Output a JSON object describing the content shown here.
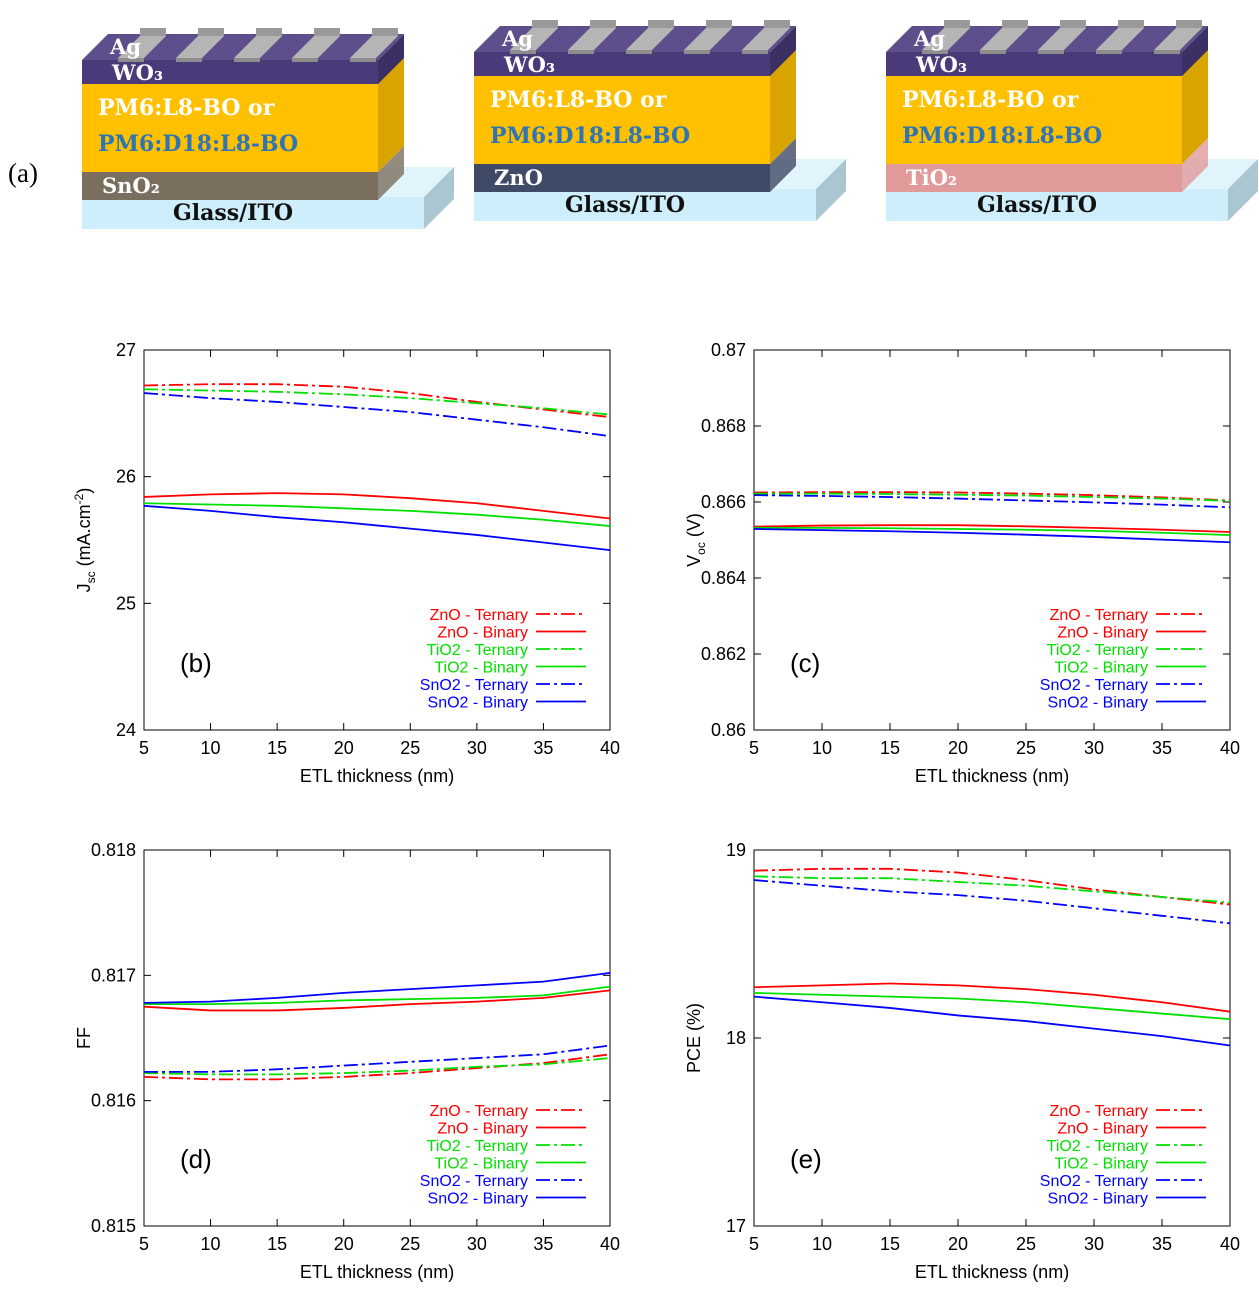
{
  "panel_a": {
    "label": "(a)",
    "stacks": [
      {
        "contact": "Ag",
        "htl": "WO₃",
        "active_line1": "PM6:L8-BO or",
        "active_line2": "PM6:D18:L8-BO",
        "etl": "SnO₂",
        "substrate": "Glass/ITO",
        "etl_color": "#7a6e5f"
      },
      {
        "contact": "Ag",
        "htl": "WO₃",
        "active_line1": "PM6:L8-BO or",
        "active_line2": "PM6:D18:L8-BO",
        "etl": "ZnO",
        "substrate": "Glass/ITO",
        "etl_color": "#3f4a66"
      },
      {
        "contact": "Ag",
        "htl": "WO₃",
        "active_line1": "PM6:L8-BO or",
        "active_line2": "PM6:D18:L8-BO",
        "etl": "TiO₂",
        "substrate": "Glass/ITO",
        "etl_color": "#e09a9a"
      }
    ]
  },
  "legend_entries": [
    {
      "name": "ZnO - Ternary",
      "color": "#ff0000",
      "dash": true
    },
    {
      "name": "ZnO - Binary",
      "color": "#ff0000",
      "dash": false
    },
    {
      "name": "TiO2 - Ternary",
      "color": "#00e000",
      "dash": true
    },
    {
      "name": "TiO2 - Binary",
      "color": "#00e000",
      "dash": false
    },
    {
      "name": "SnO2 - Ternary",
      "color": "#0000ff",
      "dash": true
    },
    {
      "name": "SnO2 - Binary",
      "color": "#0000ff",
      "dash": false
    }
  ],
  "chart_data": [
    {
      "id": "b",
      "type": "line",
      "panel_label": "(b)",
      "xlabel": "ETL thickness (nm)",
      "ylabel_main": "J",
      "ylabel_sub": "sc",
      "ylabel_rest": " (mA.cm",
      "ylabel_sup": "-2",
      "ylabel_end": ")",
      "xlim": [
        5,
        40
      ],
      "ylim": [
        24,
        27
      ],
      "xticks": [
        "5",
        "10",
        "15",
        "20",
        "25",
        "30",
        "35",
        "40"
      ],
      "yticks": [
        "24",
        "25",
        "26",
        "27"
      ],
      "x": [
        5,
        10,
        15,
        20,
        25,
        30,
        35,
        40
      ],
      "series": [
        {
          "name": "ZnO - Ternary",
          "values": [
            26.72,
            26.73,
            26.73,
            26.71,
            26.66,
            26.59,
            26.53,
            26.47
          ]
        },
        {
          "name": "ZnO - Binary",
          "values": [
            25.84,
            25.86,
            25.87,
            25.86,
            25.83,
            25.79,
            25.73,
            25.67
          ]
        },
        {
          "name": "TiO2 - Ternary",
          "values": [
            26.69,
            26.68,
            26.67,
            26.65,
            26.62,
            26.58,
            26.54,
            26.49
          ]
        },
        {
          "name": "TiO2 - Binary",
          "values": [
            25.79,
            25.78,
            25.77,
            25.75,
            25.73,
            25.7,
            25.66,
            25.61
          ]
        },
        {
          "name": "SnO2 - Ternary",
          "values": [
            26.66,
            26.62,
            26.59,
            26.55,
            26.51,
            26.45,
            26.39,
            26.32
          ]
        },
        {
          "name": "SnO2 - Binary",
          "values": [
            25.77,
            25.73,
            25.68,
            25.64,
            25.59,
            25.54,
            25.48,
            25.42
          ]
        }
      ]
    },
    {
      "id": "c",
      "type": "line",
      "panel_label": "(c)",
      "xlabel": "ETL thickness (nm)",
      "ylabel_main": "V",
      "ylabel_sub": "oc",
      "ylabel_rest": " (V)",
      "ylabel_sup": "",
      "ylabel_end": "",
      "xlim": [
        5,
        40
      ],
      "ylim": [
        0.86,
        0.87
      ],
      "xticks": [
        "5",
        "10",
        "15",
        "20",
        "25",
        "30",
        "35",
        "40"
      ],
      "yticks": [
        "0.86",
        "0.862",
        "0.864",
        "0.866",
        "0.868",
        "0.87"
      ],
      "x": [
        5,
        10,
        15,
        20,
        25,
        30,
        35,
        40
      ],
      "series": [
        {
          "name": "ZnO - Ternary",
          "values": [
            0.86625,
            0.86626,
            0.86626,
            0.86625,
            0.86622,
            0.86618,
            0.86612,
            0.86604
          ]
        },
        {
          "name": "ZnO - Binary",
          "values": [
            0.86535,
            0.86538,
            0.86539,
            0.86539,
            0.86536,
            0.86532,
            0.86527,
            0.86521
          ]
        },
        {
          "name": "TiO2 - Ternary",
          "values": [
            0.86622,
            0.86622,
            0.86621,
            0.86619,
            0.86617,
            0.86613,
            0.86609,
            0.86603
          ]
        },
        {
          "name": "TiO2 - Binary",
          "values": [
            0.86532,
            0.86532,
            0.86531,
            0.86529,
            0.86527,
            0.86524,
            0.86519,
            0.86513
          ]
        },
        {
          "name": "SnO2 - Ternary",
          "values": [
            0.86618,
            0.86616,
            0.86613,
            0.86609,
            0.86604,
            0.86599,
            0.86593,
            0.86586
          ]
        },
        {
          "name": "SnO2 - Binary",
          "values": [
            0.86529,
            0.86526,
            0.86523,
            0.86519,
            0.86514,
            0.86508,
            0.86501,
            0.86494
          ]
        }
      ]
    },
    {
      "id": "d",
      "type": "line",
      "panel_label": "(d)",
      "xlabel": "ETL thickness (nm)",
      "ylabel_main": "FF",
      "ylabel_sub": "",
      "ylabel_rest": "",
      "ylabel_sup": "",
      "ylabel_end": "",
      "xlim": [
        5,
        40
      ],
      "ylim": [
        0.815,
        0.818
      ],
      "xticks": [
        "5",
        "10",
        "15",
        "20",
        "25",
        "30",
        "35",
        "40"
      ],
      "yticks": [
        "0.815",
        "0.816",
        "0.817",
        "0.818"
      ],
      "x": [
        5,
        10,
        15,
        20,
        25,
        30,
        35,
        40
      ],
      "series": [
        {
          "name": "ZnO - Ternary",
          "values": [
            0.81619,
            0.81617,
            0.81617,
            0.81619,
            0.81622,
            0.81626,
            0.8163,
            0.81637
          ]
        },
        {
          "name": "ZnO - Binary",
          "values": [
            0.81675,
            0.81672,
            0.81672,
            0.81674,
            0.81677,
            0.81679,
            0.81682,
            0.81688
          ]
        },
        {
          "name": "TiO2 - Ternary",
          "values": [
            0.81622,
            0.81621,
            0.81621,
            0.81622,
            0.81624,
            0.81627,
            0.81629,
            0.81634
          ]
        },
        {
          "name": "TiO2 - Binary",
          "values": [
            0.81677,
            0.81677,
            0.81678,
            0.8168,
            0.81681,
            0.81682,
            0.81684,
            0.81691
          ]
        },
        {
          "name": "SnO2 - Ternary",
          "values": [
            0.81623,
            0.81623,
            0.81625,
            0.81628,
            0.81631,
            0.81634,
            0.81637,
            0.81644
          ]
        },
        {
          "name": "SnO2 - Binary",
          "values": [
            0.81678,
            0.81679,
            0.81682,
            0.81686,
            0.81689,
            0.81692,
            0.81695,
            0.81702
          ]
        }
      ]
    },
    {
      "id": "e",
      "type": "line",
      "panel_label": "(e)",
      "xlabel": "ETL thickness (nm)",
      "ylabel_main": "PCE (%)",
      "ylabel_sub": "",
      "ylabel_rest": "",
      "ylabel_sup": "",
      "ylabel_end": "",
      "xlim": [
        5,
        40
      ],
      "ylim": [
        17,
        19
      ],
      "xticks": [
        "5",
        "10",
        "15",
        "20",
        "25",
        "30",
        "35",
        "40"
      ],
      "yticks": [
        "17",
        "18",
        "19"
      ],
      "x": [
        5,
        10,
        15,
        20,
        25,
        30,
        35,
        40
      ],
      "series": [
        {
          "name": "ZnO - Ternary",
          "values": [
            18.89,
            18.9,
            18.9,
            18.88,
            18.84,
            18.79,
            18.75,
            18.71
          ]
        },
        {
          "name": "ZnO - Binary",
          "values": [
            18.27,
            18.28,
            18.29,
            18.28,
            18.26,
            18.23,
            18.19,
            18.14
          ]
        },
        {
          "name": "TiO2 - Ternary",
          "values": [
            18.86,
            18.85,
            18.85,
            18.83,
            18.81,
            18.78,
            18.75,
            18.72
          ]
        },
        {
          "name": "TiO2 - Binary",
          "values": [
            18.24,
            18.23,
            18.22,
            18.21,
            18.19,
            18.16,
            18.13,
            18.1
          ]
        },
        {
          "name": "SnO2 - Ternary",
          "values": [
            18.84,
            18.81,
            18.78,
            18.76,
            18.73,
            18.69,
            18.65,
            18.61
          ]
        },
        {
          "name": "SnO2 - Binary",
          "values": [
            18.22,
            18.19,
            18.16,
            18.12,
            18.09,
            18.05,
            18.01,
            17.96
          ]
        }
      ]
    }
  ]
}
